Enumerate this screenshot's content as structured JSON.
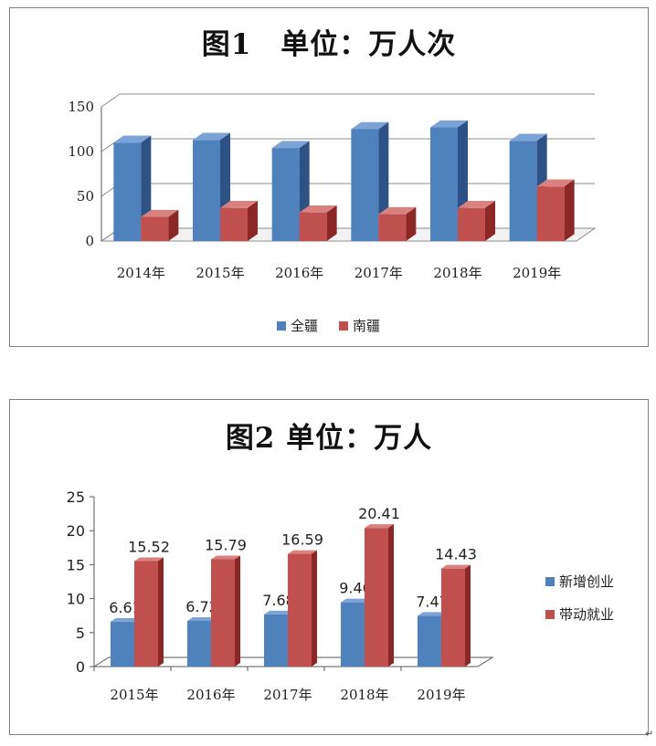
{
  "colors": {
    "blue": "#4f81bd",
    "blue_top": "#7ba3d6",
    "blue_side": "#2d5286",
    "red": "#c0504d",
    "red_top": "#d9817f",
    "red_side": "#8b2826",
    "grid": "#8c8c8c",
    "axis": "#595959"
  },
  "chart_data": [
    {
      "type": "bar",
      "title": "图1　单位：万人次",
      "categories": [
        "2014年",
        "2015年",
        "2016年",
        "2017年",
        "2018年",
        "2019年"
      ],
      "series": [
        {
          "name": "全疆",
          "values": [
            110,
            113,
            104,
            125,
            127,
            112
          ]
        },
        {
          "name": "南疆",
          "values": [
            27,
            37,
            32,
            30,
            37,
            61
          ]
        }
      ],
      "ylim": [
        0,
        150
      ],
      "yticks": [
        "0",
        "50",
        "100",
        "150"
      ],
      "grid": true,
      "legend": "bottom",
      "data_labels": false
    },
    {
      "type": "bar",
      "title": "图2 单位：万人",
      "categories": [
        "2015年",
        "2016年",
        "2017年",
        "2018年",
        "2019年"
      ],
      "series": [
        {
          "name": "新增创业",
          "values": [
            6.61,
            6.72,
            7.68,
            9.46,
            7.47
          ]
        },
        {
          "name": "带动就业",
          "values": [
            15.52,
            15.79,
            16.59,
            20.41,
            14.43
          ]
        }
      ],
      "ylim": [
        0,
        25
      ],
      "yticks": [
        "0",
        "5",
        "10",
        "15",
        "20",
        "25"
      ],
      "grid": false,
      "legend": "right",
      "data_labels": true
    }
  ],
  "return_mark": "↵"
}
